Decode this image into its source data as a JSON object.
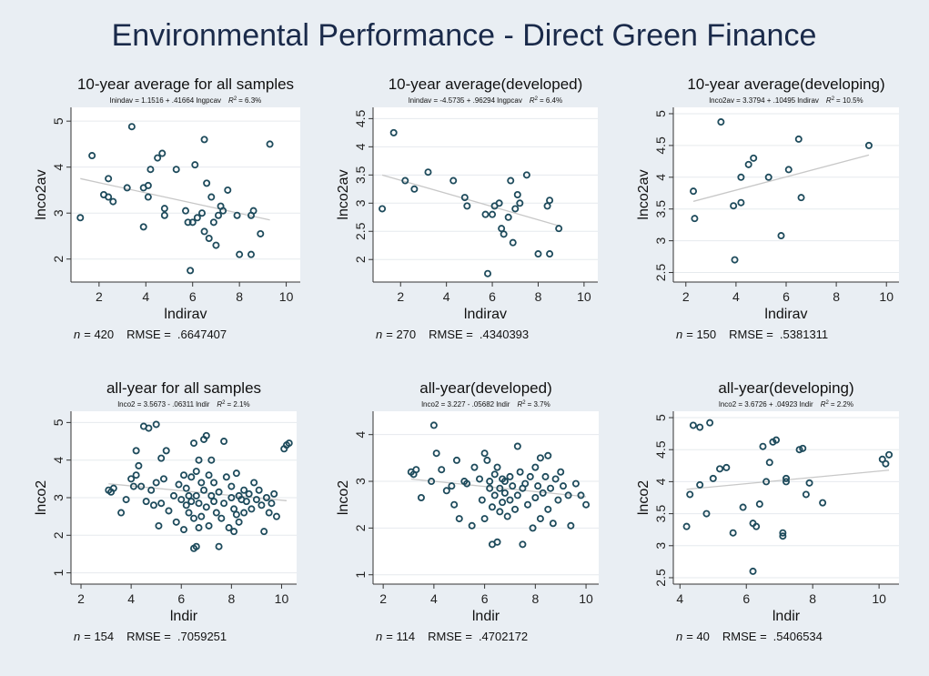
{
  "figure": {
    "title": "Environmental Performance - Direct Green Finance"
  },
  "colors": {
    "background": "#e9eef3",
    "plot_bg": "#ffffff",
    "title": "#1a2a4a",
    "marker": "#1e4b5c",
    "fit_line": "#c8c8c8",
    "grid": "#e6eaee",
    "axis": "#333333"
  },
  "chart_data": [
    {
      "type": "scatter",
      "title": "10-year average for all samples",
      "equation": "lnindav = 1.1516 + .41664 lngpcav",
      "r2_label": "R",
      "r2_value": "= 6.3%",
      "xlabel": "lndirav",
      "ylabel": "lnco2av",
      "xlim": [
        0.8,
        10.6
      ],
      "ylim": [
        1.5,
        5.3
      ],
      "xticks": [
        2,
        4,
        6,
        8,
        10
      ],
      "yticks": [
        2,
        3,
        4,
        5
      ],
      "n_label": "n",
      "n_text": "= 420",
      "rmse_label": "RMSE =",
      "rmse_value": ".6647407",
      "fit": {
        "x": [
          1.2,
          9.3
        ],
        "y": [
          3.75,
          2.85
        ]
      },
      "points": [
        [
          1.2,
          2.9
        ],
        [
          1.7,
          4.25
        ],
        [
          2.2,
          3.4
        ],
        [
          2.4,
          3.35
        ],
        [
          2.4,
          3.75
        ],
        [
          2.6,
          3.25
        ],
        [
          3.2,
          3.55
        ],
        [
          3.4,
          4.88
        ],
        [
          3.9,
          3.55
        ],
        [
          3.9,
          2.7
        ],
        [
          4.1,
          3.6
        ],
        [
          4.1,
          3.35
        ],
        [
          4.2,
          3.95
        ],
        [
          4.5,
          4.2
        ],
        [
          4.7,
          4.3
        ],
        [
          4.8,
          3.1
        ],
        [
          4.8,
          2.95
        ],
        [
          5.3,
          3.95
        ],
        [
          5.7,
          3.05
        ],
        [
          5.8,
          2.8
        ],
        [
          5.9,
          1.75
        ],
        [
          6.0,
          2.8
        ],
        [
          6.1,
          4.05
        ],
        [
          6.2,
          2.9
        ],
        [
          6.4,
          3.0
        ],
        [
          6.5,
          2.6
        ],
        [
          6.5,
          4.6
        ],
        [
          6.6,
          3.65
        ],
        [
          6.7,
          2.45
        ],
        [
          6.8,
          3.35
        ],
        [
          6.9,
          2.8
        ],
        [
          7.0,
          2.3
        ],
        [
          7.1,
          2.95
        ],
        [
          7.2,
          3.15
        ],
        [
          7.3,
          3.05
        ],
        [
          7.5,
          3.5
        ],
        [
          7.9,
          2.95
        ],
        [
          8.0,
          2.1
        ],
        [
          8.5,
          2.95
        ],
        [
          8.5,
          2.1
        ],
        [
          8.6,
          3.05
        ],
        [
          8.9,
          2.55
        ],
        [
          9.3,
          4.5
        ]
      ]
    },
    {
      "type": "scatter",
      "title": "10-year average(developed)",
      "equation": "lnindav = -4.5735 + .96294 lngpcav",
      "r2_label": "R",
      "r2_value": "= 6.4%",
      "xlabel": "lndirav",
      "ylabel": "lnco2av",
      "xlim": [
        0.8,
        10.6
      ],
      "ylim": [
        1.6,
        4.7
      ],
      "xticks": [
        2,
        4,
        6,
        8,
        10
      ],
      "yticks": [
        2,
        2.5,
        3,
        3.5,
        4,
        4.5
      ],
      "n_label": "n",
      "n_text": "= 270",
      "rmse_label": "RMSE =",
      "rmse_value": ".4340393",
      "fit": {
        "x": [
          1.2,
          8.9
        ],
        "y": [
          3.5,
          2.6
        ]
      },
      "points": [
        [
          1.2,
          2.9
        ],
        [
          1.7,
          4.25
        ],
        [
          2.2,
          3.4
        ],
        [
          2.6,
          3.25
        ],
        [
          3.2,
          3.55
        ],
        [
          4.3,
          3.4
        ],
        [
          4.8,
          3.1
        ],
        [
          4.9,
          2.95
        ],
        [
          5.7,
          2.8
        ],
        [
          5.8,
          1.75
        ],
        [
          6.0,
          2.8
        ],
        [
          6.1,
          2.95
        ],
        [
          6.3,
          3.0
        ],
        [
          6.4,
          2.55
        ],
        [
          6.5,
          2.45
        ],
        [
          6.7,
          2.75
        ],
        [
          6.8,
          3.4
        ],
        [
          6.9,
          2.3
        ],
        [
          7.0,
          2.9
        ],
        [
          7.1,
          3.15
        ],
        [
          7.2,
          3.0
        ],
        [
          7.5,
          3.5
        ],
        [
          8.0,
          2.1
        ],
        [
          8.4,
          2.95
        ],
        [
          8.5,
          3.05
        ],
        [
          8.5,
          2.1
        ],
        [
          8.9,
          2.55
        ]
      ]
    },
    {
      "type": "scatter",
      "title": "10-year average(developing)",
      "equation": "lnco2av = 3.3794 + .10495 lndirav",
      "r2_label": "R",
      "r2_value": "= 10.5%",
      "xlabel": "lndirav",
      "ylabel": "lnco2av",
      "xlim": [
        1.5,
        10.5
      ],
      "ylim": [
        2.35,
        5.1
      ],
      "xticks": [
        2,
        4,
        6,
        8,
        10
      ],
      "yticks": [
        2.5,
        3,
        3.5,
        4,
        4.5,
        5
      ],
      "n_label": "n",
      "n_text": "= 150",
      "rmse_label": "RMSE =",
      "rmse_value": ".5381311",
      "fit": {
        "x": [
          2.3,
          9.3
        ],
        "y": [
          3.62,
          4.35
        ]
      },
      "points": [
        [
          2.3,
          3.78
        ],
        [
          2.35,
          3.35
        ],
        [
          3.4,
          4.87
        ],
        [
          3.9,
          3.55
        ],
        [
          3.95,
          2.7
        ],
        [
          4.2,
          3.6
        ],
        [
          4.2,
          4.0
        ],
        [
          4.5,
          4.2
        ],
        [
          4.7,
          4.3
        ],
        [
          5.3,
          4.0
        ],
        [
          5.8,
          3.08
        ],
        [
          6.1,
          4.12
        ],
        [
          6.5,
          4.6
        ],
        [
          6.6,
          3.68
        ],
        [
          9.3,
          4.5
        ]
      ]
    },
    {
      "type": "scatter",
      "title": "all-year for all samples",
      "equation": "lnco2 = 3.5673 - .06311 lndir",
      "r2_label": "R",
      "r2_value": "= 2.1%",
      "xlabel": "lndir",
      "ylabel": "lnco2",
      "xlim": [
        1.6,
        10.6
      ],
      "ylim": [
        0.7,
        5.3
      ],
      "xticks": [
        2,
        4,
        6,
        8,
        10
      ],
      "yticks": [
        1,
        2,
        3,
        4,
        5
      ],
      "n_label": "n",
      "n_text": "= 154",
      "rmse_label": "RMSE =",
      "rmse_value": ".7059251",
      "fit": {
        "x": [
          3.1,
          10.2
        ],
        "y": [
          3.37,
          2.92
        ]
      },
      "points": [
        [
          3.1,
          3.2
        ],
        [
          3.2,
          3.15
        ],
        [
          3.3,
          3.25
        ],
        [
          3.6,
          2.6
        ],
        [
          3.8,
          2.95
        ],
        [
          4.0,
          3.5
        ],
        [
          4.1,
          3.3
        ],
        [
          4.2,
          4.25
        ],
        [
          4.2,
          3.6
        ],
        [
          4.3,
          3.85
        ],
        [
          4.4,
          3.3
        ],
        [
          4.5,
          4.9
        ],
        [
          4.6,
          2.9
        ],
        [
          4.7,
          4.85
        ],
        [
          4.8,
          3.2
        ],
        [
          4.9,
          2.8
        ],
        [
          5.0,
          3.4
        ],
        [
          5.0,
          4.95
        ],
        [
          5.1,
          2.25
        ],
        [
          5.2,
          4.05
        ],
        [
          5.2,
          2.85
        ],
        [
          5.3,
          3.5
        ],
        [
          5.4,
          4.25
        ],
        [
          5.5,
          2.65
        ],
        [
          5.7,
          3.05
        ],
        [
          5.8,
          2.35
        ],
        [
          5.9,
          3.35
        ],
        [
          6.0,
          2.95
        ],
        [
          6.1,
          3.6
        ],
        [
          6.1,
          2.15
        ],
        [
          6.2,
          2.8
        ],
        [
          6.2,
          3.25
        ],
        [
          6.3,
          3.05
        ],
        [
          6.3,
          2.6
        ],
        [
          6.4,
          2.9
        ],
        [
          6.4,
          3.55
        ],
        [
          6.5,
          1.65
        ],
        [
          6.5,
          4.45
        ],
        [
          6.5,
          2.45
        ],
        [
          6.6,
          3.05
        ],
        [
          6.6,
          3.7
        ],
        [
          6.6,
          1.7
        ],
        [
          6.7,
          2.2
        ],
        [
          6.7,
          4.0
        ],
        [
          6.7,
          2.85
        ],
        [
          6.8,
          3.4
        ],
        [
          6.8,
          2.5
        ],
        [
          6.9,
          4.55
        ],
        [
          6.9,
          3.2
        ],
        [
          7.0,
          4.65
        ],
        [
          7.0,
          2.75
        ],
        [
          7.1,
          3.6
        ],
        [
          7.1,
          2.25
        ],
        [
          7.2,
          3.05
        ],
        [
          7.2,
          4.0
        ],
        [
          7.3,
          2.9
        ],
        [
          7.3,
          3.4
        ],
        [
          7.4,
          2.6
        ],
        [
          7.5,
          1.7
        ],
        [
          7.5,
          3.15
        ],
        [
          7.6,
          2.45
        ],
        [
          7.7,
          4.5
        ],
        [
          7.7,
          2.85
        ],
        [
          7.8,
          3.55
        ],
        [
          7.9,
          2.2
        ],
        [
          8.0,
          3.0
        ],
        [
          8.0,
          3.3
        ],
        [
          8.1,
          2.7
        ],
        [
          8.1,
          2.1
        ],
        [
          8.2,
          3.65
        ],
        [
          8.2,
          2.55
        ],
        [
          8.3,
          3.05
        ],
        [
          8.3,
          2.35
        ],
        [
          8.4,
          2.95
        ],
        [
          8.5,
          3.2
        ],
        [
          8.5,
          2.6
        ],
        [
          8.6,
          2.9
        ],
        [
          8.7,
          3.1
        ],
        [
          8.8,
          2.7
        ],
        [
          8.9,
          3.4
        ],
        [
          9.0,
          2.95
        ],
        [
          9.1,
          3.2
        ],
        [
          9.2,
          2.8
        ],
        [
          9.3,
          2.1
        ],
        [
          9.4,
          3.0
        ],
        [
          9.5,
          2.6
        ],
        [
          9.6,
          2.85
        ],
        [
          9.7,
          3.1
        ],
        [
          9.8,
          2.5
        ],
        [
          10.1,
          4.3
        ],
        [
          10.2,
          4.4
        ],
        [
          10.3,
          4.45
        ]
      ]
    },
    {
      "type": "scatter",
      "title": "all-year(developed)",
      "equation": "lnco2 = 3.227 - .05682 lndir",
      "r2_label": "R",
      "r2_value": "= 3.7%",
      "xlabel": "lndir",
      "ylabel": "lnco2",
      "xlim": [
        1.6,
        10.5
      ],
      "ylim": [
        0.8,
        4.5
      ],
      "xticks": [
        2,
        4,
        6,
        8,
        10
      ],
      "yticks": [
        1,
        2,
        3,
        4
      ],
      "n_label": "n",
      "n_text": "= 114",
      "rmse_label": "RMSE =",
      "rmse_value": ".4702172",
      "fit": {
        "x": [
          3.1,
          10.0
        ],
        "y": [
          3.05,
          2.67
        ]
      },
      "points": [
        [
          3.1,
          3.2
        ],
        [
          3.2,
          3.15
        ],
        [
          3.3,
          3.25
        ],
        [
          3.5,
          2.65
        ],
        [
          3.9,
          3.0
        ],
        [
          4.0,
          4.2
        ],
        [
          4.1,
          3.6
        ],
        [
          4.3,
          3.25
        ],
        [
          4.5,
          2.8
        ],
        [
          4.7,
          2.9
        ],
        [
          4.8,
          2.5
        ],
        [
          4.9,
          3.45
        ],
        [
          5.0,
          2.2
        ],
        [
          5.2,
          3.0
        ],
        [
          5.3,
          2.95
        ],
        [
          5.5,
          2.05
        ],
        [
          5.6,
          3.3
        ],
        [
          5.8,
          3.05
        ],
        [
          5.9,
          2.6
        ],
        [
          6.0,
          3.6
        ],
        [
          6.0,
          2.2
        ],
        [
          6.1,
          3.45
        ],
        [
          6.2,
          2.85
        ],
        [
          6.2,
          3.0
        ],
        [
          6.3,
          1.65
        ],
        [
          6.3,
          2.45
        ],
        [
          6.4,
          3.15
        ],
        [
          6.4,
          2.7
        ],
        [
          6.5,
          3.3
        ],
        [
          6.5,
          1.7
        ],
        [
          6.6,
          2.85
        ],
        [
          6.6,
          2.35
        ],
        [
          6.7,
          3.05
        ],
        [
          6.7,
          2.55
        ],
        [
          6.8,
          3.0
        ],
        [
          6.8,
          2.75
        ],
        [
          6.9,
          2.25
        ],
        [
          7.0,
          3.1
        ],
        [
          7.0,
          2.6
        ],
        [
          7.1,
          2.9
        ],
        [
          7.2,
          2.4
        ],
        [
          7.3,
          3.75
        ],
        [
          7.3,
          2.7
        ],
        [
          7.4,
          3.2
        ],
        [
          7.5,
          1.65
        ],
        [
          7.5,
          2.85
        ],
        [
          7.6,
          2.95
        ],
        [
          7.7,
          2.5
        ],
        [
          7.8,
          3.1
        ],
        [
          7.9,
          2.0
        ],
        [
          8.0,
          3.3
        ],
        [
          8.0,
          2.65
        ],
        [
          8.1,
          2.9
        ],
        [
          8.2,
          2.2
        ],
        [
          8.2,
          3.5
        ],
        [
          8.3,
          2.75
        ],
        [
          8.4,
          3.1
        ],
        [
          8.5,
          2.4
        ],
        [
          8.5,
          3.55
        ],
        [
          8.6,
          2.85
        ],
        [
          8.7,
          2.1
        ],
        [
          8.8,
          3.05
        ],
        [
          8.9,
          2.6
        ],
        [
          9.0,
          3.2
        ],
        [
          9.1,
          2.9
        ],
        [
          9.3,
          2.7
        ],
        [
          9.4,
          2.05
        ],
        [
          9.6,
          2.95
        ],
        [
          9.8,
          2.7
        ],
        [
          10.0,
          2.5
        ]
      ]
    },
    {
      "type": "scatter",
      "title": "all-year(developing)",
      "equation": "lnco2 = 3.6726 + .04923 lndir",
      "r2_label": "R",
      "r2_value": "= 2.2%",
      "xlabel": "lndir",
      "ylabel": "lnco2",
      "xlim": [
        3.8,
        10.6
      ],
      "ylim": [
        2.4,
        5.1
      ],
      "xticks": [
        4,
        6,
        8,
        10
      ],
      "yticks": [
        2.5,
        3,
        3.5,
        4,
        4.5,
        5
      ],
      "n_label": "n",
      "n_text": "= 40",
      "rmse_label": "RMSE =",
      "rmse_value": ".5406534",
      "fit": {
        "x": [
          4.2,
          10.3
        ],
        "y": [
          3.88,
          4.18
        ]
      },
      "points": [
        [
          4.2,
          3.3
        ],
        [
          4.3,
          3.8
        ],
        [
          4.4,
          4.88
        ],
        [
          4.6,
          4.85
        ],
        [
          4.6,
          3.95
        ],
        [
          4.8,
          3.5
        ],
        [
          4.9,
          4.92
        ],
        [
          5.0,
          4.05
        ],
        [
          5.2,
          4.2
        ],
        [
          5.4,
          4.22
        ],
        [
          5.6,
          3.2
        ],
        [
          5.9,
          3.6
        ],
        [
          6.2,
          3.35
        ],
        [
          6.2,
          2.6
        ],
        [
          6.3,
          3.3
        ],
        [
          6.4,
          3.65
        ],
        [
          6.5,
          4.55
        ],
        [
          6.6,
          4.0
        ],
        [
          6.7,
          4.3
        ],
        [
          6.8,
          4.62
        ],
        [
          6.9,
          4.65
        ],
        [
          7.1,
          3.2
        ],
        [
          7.1,
          3.15
        ],
        [
          7.2,
          4.05
        ],
        [
          7.2,
          4.0
        ],
        [
          7.6,
          4.5
        ],
        [
          7.7,
          4.52
        ],
        [
          7.8,
          3.8
        ],
        [
          7.9,
          3.98
        ],
        [
          8.3,
          3.67
        ],
        [
          10.1,
          4.35
        ],
        [
          10.2,
          4.28
        ],
        [
          10.3,
          4.42
        ]
      ]
    }
  ]
}
